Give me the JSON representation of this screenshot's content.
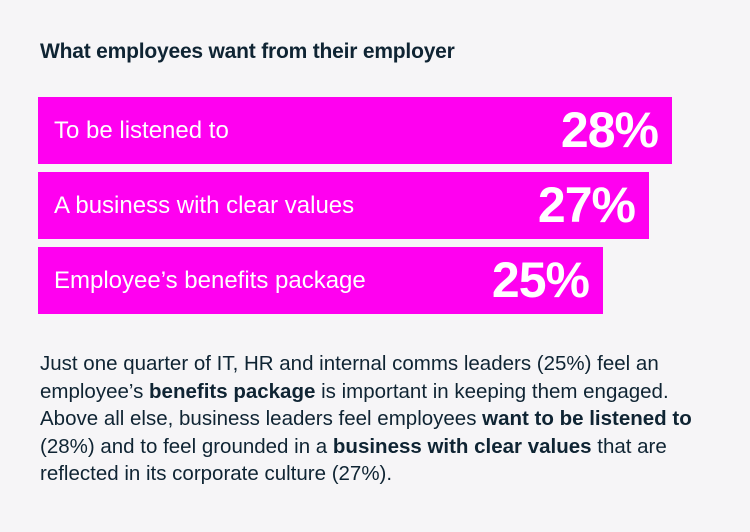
{
  "title": "What employees want from their employer",
  "colors": {
    "bar": "#ff00f0",
    "text": "#0f2433",
    "background": "#f6f5f7"
  },
  "chart_data": {
    "type": "bar",
    "orientation": "horizontal",
    "categories": [
      "To be listened to",
      "A business with clear values",
      "Employee’s benefits package"
    ],
    "values": [
      28,
      27,
      25
    ],
    "value_labels": [
      "28%",
      "27%",
      "25%"
    ],
    "unit": "%"
  },
  "body": {
    "p1": "Just one quarter of IT, HR and internal comms leaders (25%) feel an employee’s ",
    "b1": "benefits package",
    "p2": " is important in keeping them engaged. Above all else, business leaders feel employees ",
    "b2": "want to be listened to",
    "p3": " (28%) and to feel grounded in a ",
    "b3": "business with clear values",
    "p4": " that are reflected in its corporate culture (27%)."
  }
}
